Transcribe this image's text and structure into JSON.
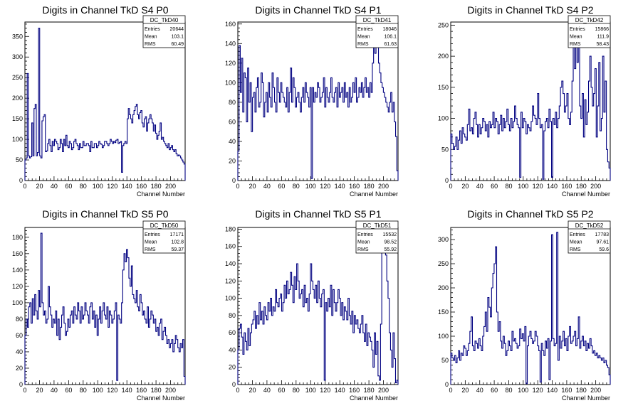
{
  "chart_data": [
    {
      "type": "histogram",
      "title": "Digits in Channel TkD S4 P0",
      "xlabel": "Channel Number",
      "ylabel": "",
      "xlim": [
        0,
        220
      ],
      "ylim": [
        0,
        385
      ],
      "xticks": [
        0,
        20,
        40,
        60,
        80,
        100,
        120,
        140,
        160,
        180,
        200
      ],
      "yticks": [
        50,
        100,
        150,
        200,
        250,
        300,
        350
      ],
      "stats": {
        "name": "DC_TkD40",
        "entries": "20644",
        "mean": "103.1",
        "rms": "60.49"
      },
      "series": [
        {
          "color": "#000080",
          "values": [
            50,
            55,
            260,
            60,
            55,
            58,
            140,
            60,
            175,
            185,
            60,
            68,
            370,
            60,
            55,
            145,
            155,
            160,
            70,
            72,
            90,
            100,
            85,
            70,
            95,
            85,
            100,
            95,
            90,
            75,
            80,
            100,
            90,
            70,
            100,
            85,
            110,
            85,
            80,
            95,
            90,
            75,
            80,
            95,
            100,
            90,
            85,
            75,
            90,
            80,
            80,
            95,
            85,
            85,
            90,
            90,
            85,
            70,
            95,
            80,
            80,
            90,
            90,
            80,
            85,
            95,
            90,
            88,
            80,
            85,
            95,
            95,
            90,
            85,
            90,
            100,
            95,
            90,
            95,
            92,
            98,
            100,
            90,
            92,
            95,
            20,
            85,
            90,
            95,
            90,
            150,
            175,
            160,
            150,
            140,
            160,
            170,
            180,
            185,
            160,
            150,
            165,
            170,
            140,
            130,
            150,
            155,
            120,
            140,
            150,
            160,
            150,
            140,
            120,
            135,
            115,
            100,
            110,
            120,
            140,
            100,
            105,
            95,
            90,
            85,
            80,
            90,
            75,
            80,
            85,
            75,
            70,
            75,
            65,
            60,
            62,
            60,
            55,
            50,
            45,
            40
          ]
        }
      ]
    },
    {
      "type": "histogram",
      "title": "Digits in Channel TkD S4 P1",
      "xlabel": "Channel Number",
      "ylabel": "",
      "xlim": [
        0,
        220
      ],
      "ylim": [
        0,
        162
      ],
      "xticks": [
        0,
        20,
        40,
        60,
        80,
        100,
        120,
        140,
        160,
        180,
        200
      ],
      "yticks": [
        20,
        40,
        60,
        80,
        100,
        120,
        140,
        160
      ],
      "stats": {
        "name": "DC_TkD41",
        "entries": "18046",
        "mean": "106.1",
        "rms": "61.63"
      },
      "series": [
        {
          "color": "#000080",
          "values": [
            30,
            138,
            90,
            125,
            70,
            110,
            105,
            60,
            115,
            80,
            100,
            50,
            85,
            90,
            70,
            95,
            105,
            75,
            80,
            110,
            100,
            65,
            80,
            90,
            70,
            100,
            85,
            75,
            110,
            95,
            80,
            70,
            105,
            90,
            80,
            100,
            90,
            85,
            80,
            75,
            95,
            70,
            90,
            115,
            80,
            105,
            95,
            75,
            85,
            90,
            80,
            70,
            85,
            95,
            80,
            100,
            90,
            85,
            75,
            95,
            2,
            95,
            80,
            90,
            85,
            100,
            95,
            80,
            85,
            90,
            105,
            75,
            95,
            85,
            80,
            90,
            105,
            85,
            80,
            90,
            95,
            75,
            100,
            85,
            90,
            95,
            80,
            100,
            85,
            90,
            75,
            95,
            80,
            85,
            100,
            90,
            105,
            80,
            85,
            95,
            90,
            100,
            85,
            95,
            105,
            90,
            95,
            85,
            100,
            90,
            120,
            150,
            130,
            160,
            145,
            120,
            110,
            100,
            95,
            90,
            85,
            80,
            75,
            70,
            80,
            90,
            70,
            80,
            60,
            45,
            10
          ]
        }
      ]
    },
    {
      "type": "histogram",
      "title": "Digits in Channel TkD S4 P2",
      "xlabel": "Channel Number",
      "ylabel": "",
      "xlim": [
        0,
        220
      ],
      "ylim": [
        0,
        255
      ],
      "xticks": [
        0,
        20,
        40,
        60,
        80,
        100,
        120,
        140,
        160,
        180,
        200
      ],
      "yticks": [
        50,
        100,
        150,
        200,
        250
      ],
      "stats": {
        "name": "DC_TkD42",
        "entries": "15866",
        "mean": "111.9",
        "rms": "58.43"
      },
      "series": [
        {
          "color": "#000080",
          "values": [
            75,
            60,
            50,
            55,
            70,
            50,
            65,
            80,
            60,
            85,
            75,
            70,
            65,
            90,
            115,
            80,
            85,
            75,
            100,
            110,
            90,
            70,
            90,
            75,
            85,
            100,
            95,
            80,
            90,
            70,
            95,
            85,
            90,
            110,
            85,
            100,
            95,
            75,
            90,
            105,
            80,
            100,
            85,
            95,
            115,
            90,
            80,
            100,
            85,
            95,
            120,
            100,
            90,
            85,
            5,
            110,
            85,
            100,
            95,
            75,
            90,
            85,
            80,
            95,
            120,
            105,
            100,
            90,
            140,
            100,
            85,
            90,
            2,
            80,
            95,
            100,
            85,
            115,
            95,
            5,
            100,
            90,
            110,
            85,
            100,
            120,
            150,
            160,
            140,
            110,
            120,
            140,
            100,
            90,
            110,
            160,
            240,
            180,
            230,
            190,
            245,
            120,
            100,
            140,
            70,
            130,
            90,
            110,
            160,
            200,
            150,
            120,
            140,
            180,
            70,
            120,
            190,
            80,
            100,
            200,
            110,
            160,
            50,
            30,
            20
          ]
        }
      ]
    },
    {
      "type": "histogram",
      "title": "Digits in Channel TkD S5 P0",
      "xlabel": "Channel Number",
      "ylabel": "",
      "xlim": [
        0,
        220
      ],
      "ylim": [
        0,
        192
      ],
      "xticks": [
        0,
        20,
        40,
        60,
        80,
        100,
        120,
        140,
        160,
        180,
        200
      ],
      "yticks": [
        20,
        40,
        60,
        80,
        100,
        120,
        140,
        160,
        180
      ],
      "stats": {
        "name": "DC_TkD50",
        "entries": "17171",
        "mean": "102.8",
        "rms": "59.37"
      },
      "series": [
        {
          "color": "#000080",
          "values": [
            60,
            80,
            70,
            95,
            100,
            75,
            105,
            85,
            110,
            90,
            80,
            115,
            95,
            185,
            100,
            85,
            90,
            75,
            80,
            120,
            95,
            85,
            70,
            80,
            75,
            90,
            60,
            80,
            55,
            70,
            85,
            95,
            75,
            60,
            65,
            80,
            70,
            85,
            90,
            75,
            95,
            85,
            80,
            100,
            90,
            75,
            95,
            80,
            85,
            100,
            90,
            85,
            75,
            95,
            100,
            80,
            90,
            70,
            85,
            60,
            80,
            95,
            75,
            90,
            100,
            85,
            80,
            95,
            70,
            90,
            85,
            75,
            80,
            90,
            100,
            5,
            85,
            80,
            75,
            100,
            140,
            160,
            150,
            165,
            155,
            130,
            120,
            145,
            110,
            105,
            100,
            115,
            95,
            90,
            110,
            100,
            85,
            90,
            80,
            75,
            95,
            70,
            80,
            90,
            85,
            75,
            80,
            65,
            70,
            60,
            75,
            80,
            55,
            65,
            70,
            60,
            50,
            55,
            45,
            50,
            55,
            40,
            50,
            60,
            55,
            45,
            40,
            50,
            45,
            55,
            10
          ]
        }
      ]
    },
    {
      "type": "histogram",
      "title": "Digits in Channel TkD S5 P1",
      "xlabel": "Channel Number",
      "ylabel": "",
      "xlim": [
        0,
        220
      ],
      "ylim": [
        0,
        182
      ],
      "xticks": [
        0,
        20,
        40,
        60,
        80,
        100,
        120,
        140,
        160,
        180,
        200
      ],
      "yticks": [
        20,
        40,
        60,
        80,
        100,
        120,
        140,
        160,
        180
      ],
      "stats": {
        "name": "DC_TkD51",
        "entries": "15532",
        "mean": "98.52",
        "rms": "55.92"
      },
      "series": [
        {
          "color": "#000080",
          "values": [
            40,
            65,
            70,
            55,
            35,
            60,
            50,
            40,
            65,
            45,
            60,
            70,
            75,
            85,
            65,
            80,
            70,
            95,
            75,
            85,
            70,
            90,
            80,
            75,
            95,
            85,
            100,
            80,
            90,
            85,
            110,
            95,
            90,
            100,
            105,
            85,
            95,
            115,
            100,
            120,
            105,
            110,
            130,
            115,
            95,
            125,
            110,
            140,
            120,
            100,
            105,
            110,
            90,
            115,
            95,
            100,
            85,
            105,
            140,
            120,
            110,
            100,
            115,
            95,
            120,
            100,
            90,
            105,
            110,
            5,
            95,
            85,
            100,
            90,
            115,
            80,
            110,
            95,
            85,
            95,
            110,
            100,
            80,
            95,
            75,
            90,
            85,
            75,
            100,
            80,
            70,
            85,
            60,
            80,
            70,
            75,
            65,
            60,
            70,
            80,
            60,
            50,
            70,
            45,
            60,
            55,
            50,
            40,
            20,
            60,
            35,
            50,
            10,
            5,
            70,
            170,
            160,
            180,
            150,
            120,
            100,
            60,
            40,
            20,
            60,
            30,
            2,
            5
          ]
        }
      ]
    },
    {
      "type": "histogram",
      "title": "Digits in Channel TkD S5 P2",
      "xlabel": "Channel Number",
      "ylabel": "",
      "xlim": [
        0,
        220
      ],
      "ylim": [
        0,
        325
      ],
      "xticks": [
        0,
        20,
        40,
        60,
        80,
        100,
        120,
        140,
        160,
        180,
        200
      ],
      "yticks": [
        50,
        100,
        150,
        200,
        250,
        300
      ],
      "stats": {
        "name": "DC_TkD52",
        "entries": "17783",
        "mean": "97.61",
        "rms": "59.6"
      },
      "series": [
        {
          "color": "#000080",
          "values": [
            65,
            55,
            50,
            60,
            45,
            55,
            70,
            50,
            65,
            60,
            80,
            75,
            60,
            70,
            85,
            110,
            140,
            80,
            70,
            90,
            85,
            75,
            95,
            80,
            70,
            100,
            120,
            150,
            110,
            180,
            160,
            140,
            200,
            230,
            250,
            285,
            150,
            110,
            130,
            90,
            75,
            100,
            85,
            60,
            70,
            90,
            80,
            70,
            110,
            90,
            95,
            85,
            75,
            80,
            115,
            95,
            105,
            90,
            120,
            2,
            80,
            100,
            110,
            95,
            85,
            90,
            110,
            100,
            80,
            70,
            5,
            85,
            70,
            60,
            90,
            75,
            95,
            10,
            90,
            310,
            95,
            80,
            85,
            315,
            50,
            100,
            75,
            90,
            110,
            80,
            95,
            70,
            100,
            120,
            85,
            90,
            100,
            110,
            80,
            95,
            140,
            75,
            90,
            100,
            80,
            90,
            70,
            85,
            75,
            95,
            80,
            65,
            70,
            60,
            65,
            55,
            60,
            55,
            50,
            55,
            45,
            50,
            40,
            35,
            20
          ]
        }
      ]
    }
  ]
}
